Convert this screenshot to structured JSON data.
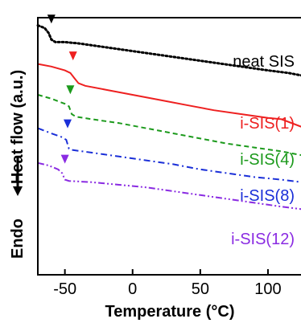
{
  "chart_data": {
    "type": "line",
    "title": "",
    "xlabel": "Temperature (°C)",
    "ylabel": "Heat flow (a.u.)",
    "ylabel_annotation": "Endo",
    "xlim": [
      -70,
      125
    ],
    "xticks": [
      -50,
      0,
      50,
      100
    ],
    "xtick_labels": [
      "-50",
      "0",
      "50",
      "100"
    ],
    "ylim": [
      0,
      1
    ],
    "y_ticks_shown": false,
    "grid": false,
    "series": [
      {
        "name": "neat SIS",
        "color": "#000000",
        "dash": "dotted",
        "tg_marker_x": -60,
        "points": [
          [
            -70,
            0.97
          ],
          [
            -65,
            0.96
          ],
          [
            -62,
            0.94
          ],
          [
            -60,
            0.915
          ],
          [
            -57,
            0.905
          ],
          [
            -50,
            0.905
          ],
          [
            -40,
            0.9
          ],
          [
            -20,
            0.885
          ],
          [
            0,
            0.87
          ],
          [
            20,
            0.855
          ],
          [
            40,
            0.84
          ],
          [
            60,
            0.825
          ],
          [
            80,
            0.81
          ],
          [
            100,
            0.795
          ],
          [
            115,
            0.785
          ],
          [
            125,
            0.775
          ]
        ]
      },
      {
        "name": "i-SIS(1)",
        "color": "#ee2020",
        "dash": "solid",
        "tg_marker_x": -44,
        "points": [
          [
            -70,
            0.82
          ],
          [
            -60,
            0.81
          ],
          [
            -50,
            0.795
          ],
          [
            -46,
            0.785
          ],
          [
            -43,
            0.765
          ],
          [
            -40,
            0.745
          ],
          [
            -35,
            0.735
          ],
          [
            -20,
            0.72
          ],
          [
            0,
            0.7
          ],
          [
            20,
            0.68
          ],
          [
            40,
            0.66
          ],
          [
            60,
            0.64
          ],
          [
            80,
            0.625
          ],
          [
            100,
            0.61
          ],
          [
            110,
            0.605
          ],
          [
            125,
            0.575
          ]
        ]
      },
      {
        "name": "i-SIS(4)",
        "color": "#1c9a1c",
        "dash": "dashed",
        "tg_marker_x": -46,
        "points": [
          [
            -70,
            0.7
          ],
          [
            -60,
            0.685
          ],
          [
            -50,
            0.665
          ],
          [
            -47,
            0.655
          ],
          [
            -45,
            0.625
          ],
          [
            -42,
            0.615
          ],
          [
            -30,
            0.605
          ],
          [
            -10,
            0.59
          ],
          [
            10,
            0.57
          ],
          [
            30,
            0.55
          ],
          [
            50,
            0.53
          ],
          [
            70,
            0.51
          ],
          [
            90,
            0.495
          ],
          [
            110,
            0.48
          ],
          [
            125,
            0.465
          ]
        ]
      },
      {
        "name": "i-SIS(8)",
        "color": "#1a2fd8",
        "dash": "dashdot",
        "tg_marker_x": -48,
        "points": [
          [
            -70,
            0.57
          ],
          [
            -60,
            0.55
          ],
          [
            -52,
            0.535
          ],
          [
            -49,
            0.525
          ],
          [
            -47,
            0.49
          ],
          [
            -44,
            0.485
          ],
          [
            -30,
            0.475
          ],
          [
            -10,
            0.46
          ],
          [
            10,
            0.445
          ],
          [
            30,
            0.43
          ],
          [
            50,
            0.41
          ],
          [
            70,
            0.395
          ],
          [
            90,
            0.38
          ],
          [
            110,
            0.37
          ],
          [
            125,
            0.36
          ]
        ]
      },
      {
        "name": "i-SIS(12)",
        "color": "#8a2be2",
        "dash": "dashdotdot",
        "tg_marker_x": -50,
        "points": [
          [
            -70,
            0.435
          ],
          [
            -62,
            0.425
          ],
          [
            -55,
            0.41
          ],
          [
            -52,
            0.395
          ],
          [
            -50,
            0.37
          ],
          [
            -47,
            0.365
          ],
          [
            -30,
            0.36
          ],
          [
            -10,
            0.35
          ],
          [
            10,
            0.34
          ],
          [
            30,
            0.325
          ],
          [
            50,
            0.31
          ],
          [
            70,
            0.295
          ],
          [
            90,
            0.28
          ],
          [
            110,
            0.265
          ],
          [
            125,
            0.255
          ]
        ]
      }
    ]
  }
}
